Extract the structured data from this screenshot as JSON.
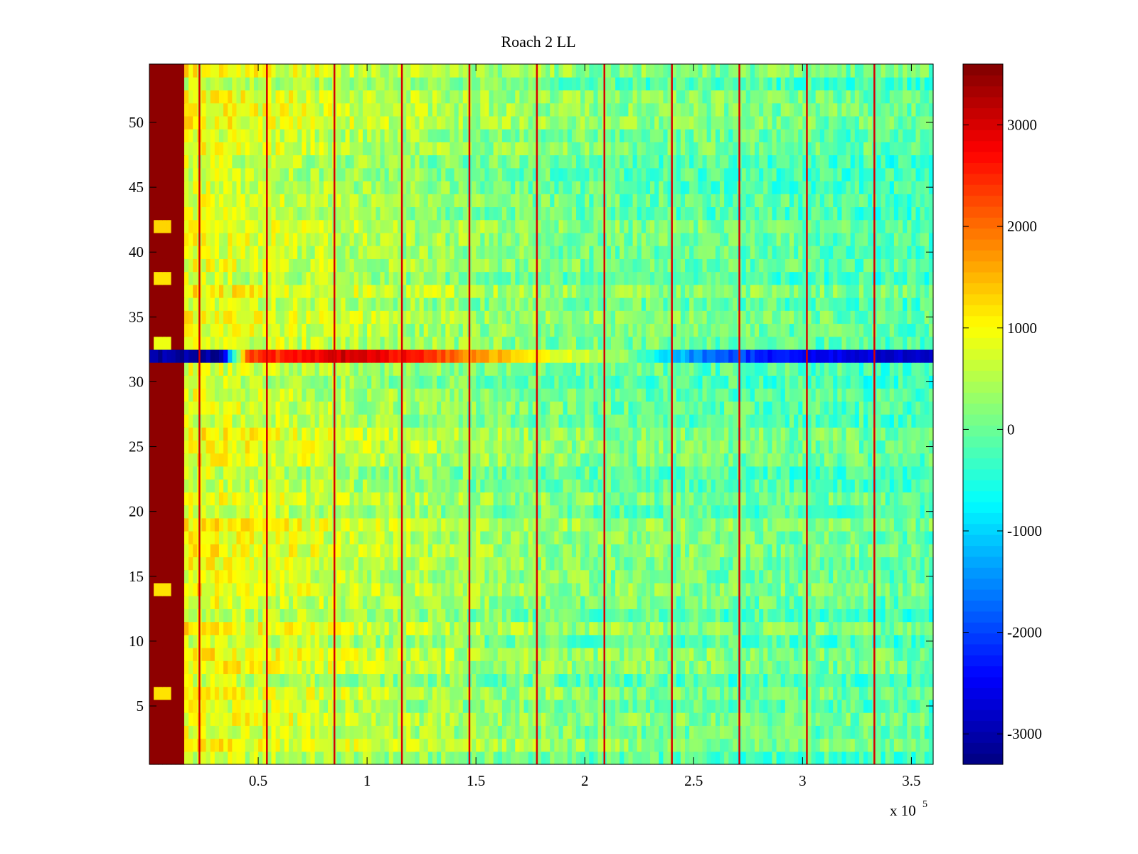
{
  "chart_data": {
    "type": "heatmap",
    "title": "Roach 2 LL",
    "xlabel": "",
    "ylabel": "",
    "x_range": [
      0,
      360000
    ],
    "y_range": [
      0.5,
      54.5
    ],
    "x_ticks": [
      50000,
      100000,
      150000,
      200000,
      250000,
      300000,
      350000
    ],
    "x_tick_labels": [
      "0.5",
      "1",
      "1.5",
      "2",
      "2.5",
      "3",
      "3.5"
    ],
    "x_exponent_label": "x 10",
    "x_exponent_power": "5",
    "y_ticks": [
      5,
      10,
      15,
      20,
      25,
      30,
      35,
      40,
      45,
      50
    ],
    "y_tick_labels": [
      "5",
      "10",
      "15",
      "20",
      "25",
      "30",
      "35",
      "40",
      "45",
      "50"
    ],
    "rows": 54,
    "colormap": "jet",
    "color_range": [
      -3300,
      3600
    ],
    "colorbar": {
      "ticks": [
        -3000,
        -2000,
        -1000,
        0,
        1000,
        2000,
        3000
      ],
      "tick_labels": [
        "-3000",
        "-2000",
        "-1000",
        "0",
        "1000",
        "2000",
        "3000"
      ]
    },
    "baseline": {
      "left_block_x_end": 17000,
      "left_block_value": 3500,
      "value_at_x": [
        [
          17000,
          900
        ],
        [
          60000,
          700
        ],
        [
          120000,
          400
        ],
        [
          200000,
          100
        ],
        [
          360000,
          -150
        ]
      ]
    },
    "bright_left_rows": [
      {
        "row": 6,
        "value": 1200
      },
      {
        "row": 14,
        "value": 1200
      },
      {
        "row": 33,
        "value": 900
      },
      {
        "row": 38,
        "value": 1200
      },
      {
        "row": 42,
        "value": 1300
      }
    ],
    "anomalous_row": {
      "row": 32,
      "value_at_x": [
        [
          0,
          -3100
        ],
        [
          33000,
          -3100
        ],
        [
          45000,
          2200
        ],
        [
          90000,
          3100
        ],
        [
          120000,
          2600
        ],
        [
          170000,
          1200
        ],
        [
          215000,
          400
        ],
        [
          250000,
          -1500
        ],
        [
          290000,
          -2400
        ],
        [
          360000,
          -2900
        ]
      ]
    },
    "periodic_vertical_lines": {
      "x_positions": [
        23000,
        54000,
        85000,
        116000,
        147000,
        178000,
        209000,
        240000,
        271000,
        302000,
        333000
      ],
      "value": 3000
    }
  },
  "colors": {
    "background": "#ffffff",
    "axis": "#000000"
  }
}
